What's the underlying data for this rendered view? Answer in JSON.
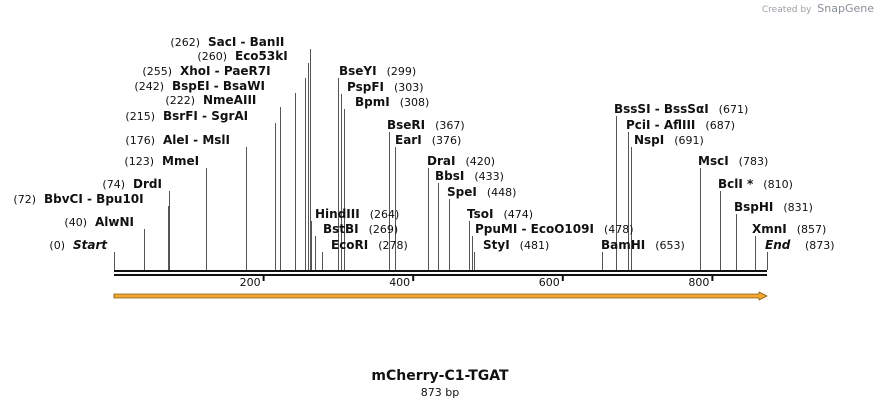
{
  "watermark": {
    "created_by": "Created by",
    "brand": "SnapGene"
  },
  "map": {
    "title": "mCherry-C1-TGAT",
    "length_label": "873 bp",
    "length_bp": 873,
    "axis_ticks": [
      {
        "bp": 200,
        "label": "200"
      },
      {
        "bp": 400,
        "label": "400"
      },
      {
        "bp": 600,
        "label": "600"
      },
      {
        "bp": 800,
        "label": "800"
      }
    ],
    "feature": {
      "name": "orange-feature-arrow",
      "start_bp": 0,
      "end_bp": 873,
      "color": "#f2a732",
      "outline": "#8a5a10"
    },
    "colors": {
      "line": "#555555",
      "backbone": "#111111",
      "text": "#111111"
    }
  },
  "sites": [
    {
      "name": "Start",
      "pos_text": "(0)",
      "bp": 0,
      "italic": true
    },
    {
      "name": "AlwNI",
      "pos_text": "(40)",
      "bp": 40
    },
    {
      "name": "BbvCI",
      "alt": "Bpu10I",
      "pos_text": "(72)",
      "bp": 72
    },
    {
      "name": "DrdI",
      "pos_text": "(74)",
      "bp": 74
    },
    {
      "name": "MmeI",
      "pos_text": "(123)",
      "bp": 123
    },
    {
      "name": "AleI",
      "alt": "MslI",
      "pos_text": "(176)",
      "bp": 176
    },
    {
      "name": "BsrFI",
      "alt": "SgrAI",
      "pos_text": "(215)",
      "bp": 215
    },
    {
      "name": "NmeAIII",
      "pos_text": "(222)",
      "bp": 222
    },
    {
      "name": "BspEI",
      "alt": "BsaWI",
      "pos_text": "(242)",
      "bp": 242
    },
    {
      "name": "XhoI",
      "alt": "PaeR7I",
      "pos_text": "(255)",
      "bp": 255
    },
    {
      "name": "Eco53kI",
      "pos_text": "(260)",
      "bp": 260
    },
    {
      "name": "SacI",
      "alt": "BanII",
      "pos_text": "(262)",
      "bp": 262
    },
    {
      "name": "HindIII",
      "pos_text": "(264)",
      "bp": 264
    },
    {
      "name": "BstBI",
      "pos_text": "(269)",
      "bp": 269
    },
    {
      "name": "EcoRI",
      "pos_text": "(278)",
      "bp": 278
    },
    {
      "name": "BseYI",
      "pos_text": "(299)",
      "bp": 299
    },
    {
      "name": "PspFI",
      "pos_text": "(303)",
      "bp": 303
    },
    {
      "name": "BpmI",
      "pos_text": "(308)",
      "bp": 308
    },
    {
      "name": "BseRI",
      "pos_text": "(367)",
      "bp": 367
    },
    {
      "name": "EarI",
      "pos_text": "(376)",
      "bp": 376
    },
    {
      "name": "DraI",
      "pos_text": "(420)",
      "bp": 420
    },
    {
      "name": "BbsI",
      "pos_text": "(433)",
      "bp": 433
    },
    {
      "name": "SpeI",
      "pos_text": "(448)",
      "bp": 448
    },
    {
      "name": "TsoI",
      "pos_text": "(474)",
      "bp": 474
    },
    {
      "name": "PpuMI",
      "alt": "EcoO109I",
      "pos_text": "(478)",
      "bp": 478
    },
    {
      "name": "StyI",
      "pos_text": "(481)",
      "bp": 481
    },
    {
      "name": "BamHI",
      "pos_text": "(653)",
      "bp": 653
    },
    {
      "name": "BssSI",
      "alt": "BssSαI",
      "pos_text": "(671)",
      "bp": 671
    },
    {
      "name": "PciI",
      "alt": "AflIII",
      "pos_text": "(687)",
      "bp": 687
    },
    {
      "name": "NspI",
      "pos_text": "(691)",
      "bp": 691
    },
    {
      "name": "MscI",
      "pos_text": "(783)",
      "bp": 783
    },
    {
      "name": "BclI *",
      "pos_text": "(810)",
      "bp": 810
    },
    {
      "name": "BspHI",
      "pos_text": "(831)",
      "bp": 831
    },
    {
      "name": "XmnI",
      "pos_text": "(857)",
      "bp": 857
    },
    {
      "name": "End",
      "pos_text": "(873)",
      "bp": 873,
      "italic": true
    }
  ]
}
